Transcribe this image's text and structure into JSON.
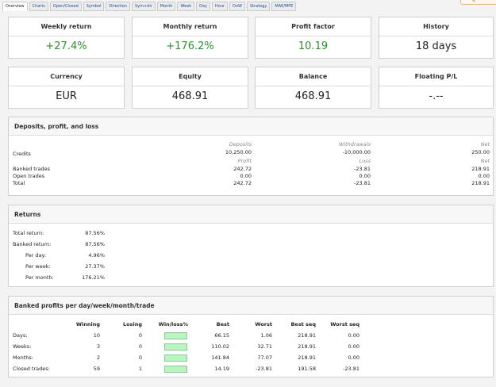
{
  "tabs": [
    "Overview",
    "Charts",
    "Open/Closed",
    "Symbol",
    "Direction",
    "Sym+dir",
    "Month",
    "Week",
    "Day",
    "Hour",
    "DoW",
    "Strategy",
    "MAE/MFE"
  ],
  "summary": {
    "weekly_return_label": "Weekly return",
    "weekly_return": "+27.4%",
    "monthly_return_label": "Monthly return",
    "monthly_return": "+176.2%",
    "profit_factor_label": "Profit factor",
    "profit_factor": "10.19",
    "history_label": "History",
    "history": "18 days",
    "currency_label": "Currency",
    "currency": "EUR",
    "equity_label": "Equity",
    "equity": "468.91",
    "balance_label": "Balance",
    "balance": "468.91",
    "floating_label": "Floating P/L",
    "floating": "-.--"
  },
  "deposits": {
    "title": "Deposits, profit, and loss",
    "col_deposits": "Deposits",
    "col_withdrawals": "Withdrawals",
    "col_net": "Net",
    "credits_label": "Credits",
    "credits_deposits": "10,250.00",
    "credits_withdrawals": "-10,000.00",
    "credits_net": "250.00",
    "col_profit": "Profit",
    "col_loss": "Loss",
    "col_net2": "Net",
    "rows": [
      {
        "label": "Banked trades",
        "profit": "242.72",
        "loss": "-23.81",
        "net": "218.91"
      },
      {
        "label": "Open trades",
        "profit": "0.00",
        "loss": "0.00",
        "net": "0.00"
      },
      {
        "label": "Total",
        "profit": "242.72",
        "loss": "-23.81",
        "net": "218.91"
      }
    ]
  },
  "returns": {
    "title": "Returns",
    "rows": [
      {
        "label": "Total return:",
        "value": "87.56%"
      },
      {
        "label": "Banked return:",
        "value": "87.56%"
      },
      {
        "label": "Per day:",
        "value": "4.96%"
      },
      {
        "label": "Per week:",
        "value": "27.37%"
      },
      {
        "label": "Per month:",
        "value": "176.21%"
      }
    ]
  },
  "banked": {
    "title": "Banked profits per day/week/month/trade",
    "headers": {
      "winning": "Winning",
      "losing": "Losing",
      "winloss": "Win/loss%",
      "best": "Best",
      "worst": "Worst",
      "best_seq": "Best seq",
      "worst_seq": "Worst seq"
    },
    "rows": [
      {
        "label": "Days:",
        "winning": "10",
        "losing": "0",
        "win_fraction": 1.0,
        "best": "66.15",
        "worst": "1.06",
        "best_seq": "218.91",
        "worst_seq": "0.00"
      },
      {
        "label": "Weeks:",
        "winning": "3",
        "losing": "0",
        "win_fraction": 1.0,
        "best": "110.02",
        "worst": "32.71",
        "best_seq": "218.91",
        "worst_seq": "0.00"
      },
      {
        "label": "Months:",
        "winning": "2",
        "losing": "0",
        "win_fraction": 1.0,
        "best": "141.84",
        "worst": "77.07",
        "best_seq": "218.91",
        "worst_seq": "0.00"
      },
      {
        "label": "Closed trades:",
        "winning": "59",
        "losing": "1",
        "win_fraction": 0.983,
        "best": "14.19",
        "worst": "-23.81",
        "best_seq": "191.58",
        "worst_seq": "-23.81"
      }
    ]
  }
}
